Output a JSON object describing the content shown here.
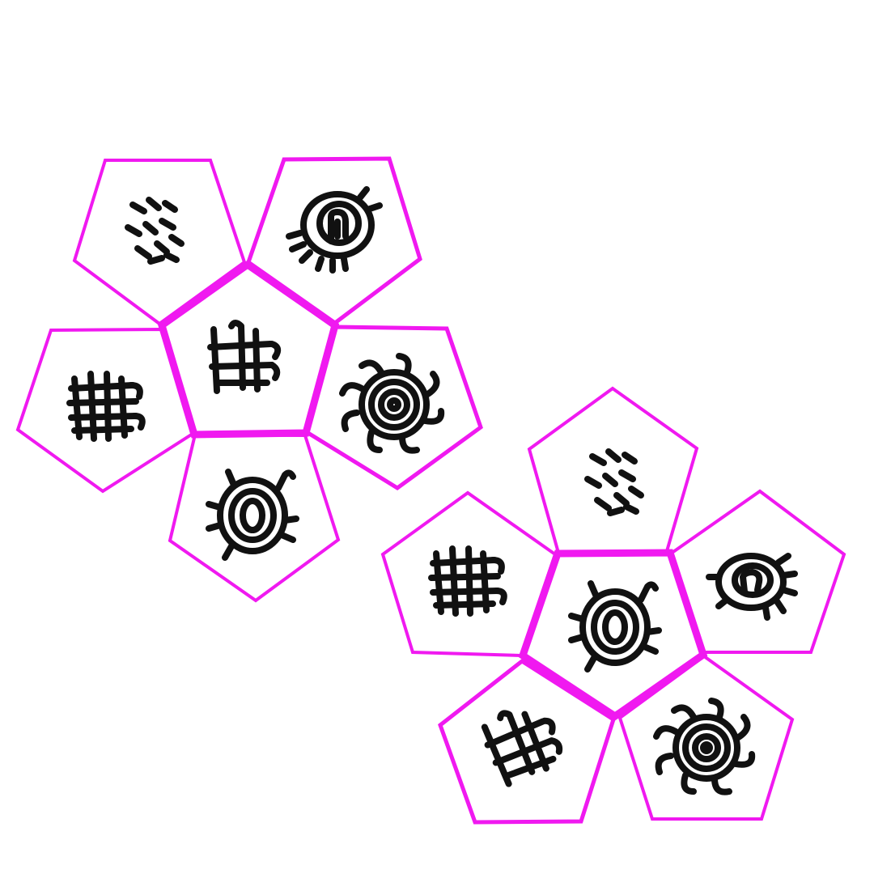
{
  "colors": {
    "outline": "#f019f0",
    "glyph": "#111111",
    "background": "#ffffff"
  },
  "nets": [
    {
      "name": "net-top-left",
      "center_glyph": "grid-hook-glyph",
      "petal_glyphs": [
        "dash-cluster-glyph",
        "spiral-hook-glyph",
        "coil-burst-glyph",
        "oval-ring-glyph",
        "crosshatch-glyph"
      ]
    },
    {
      "name": "net-bottom-right",
      "center_glyph": "oval-ring-glyph",
      "petal_glyphs": [
        "dash-cluster-glyph",
        "spiral-hook-glyph",
        "coil-burst-glyph",
        "grid-hook-glyph",
        "crosshatch-glyph"
      ]
    }
  ]
}
